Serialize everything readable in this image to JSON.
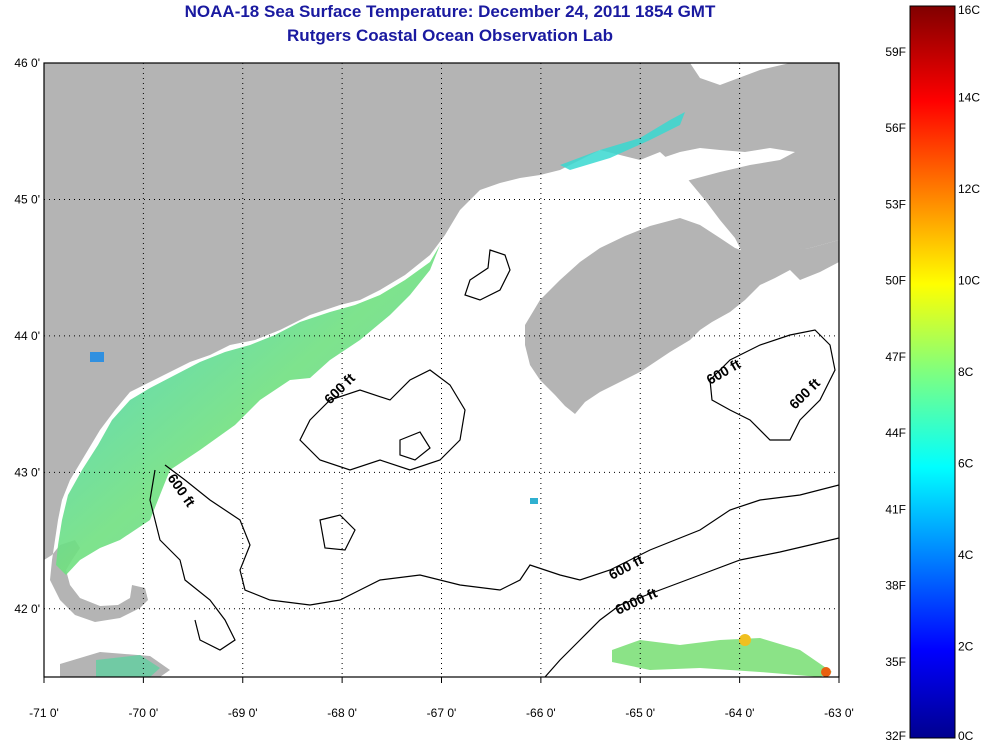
{
  "title": {
    "line1": "NOAA-18 Sea Surface Temperature:  December 24, 2011 1854 GMT",
    "line2": "Rutgers Coastal Ocean Observation Lab"
  },
  "map": {
    "lon_ticks": [
      "-71 0'",
      "-70 0'",
      "-69 0'",
      "-68 0'",
      "-67 0'",
      "-66 0'",
      "-65 0'",
      "-64 0'",
      "-63 0'"
    ],
    "lat_ticks": [
      "46 0'",
      "45 0'",
      "44 0'",
      "43 0'",
      "42 0'"
    ],
    "lon_range": [
      -71,
      -63
    ],
    "lat_range": [
      41.5,
      46
    ],
    "contour_labels": [
      "600 ft",
      "600 ft",
      "600 ft",
      "600 ft",
      "600 ft",
      "6000 ft"
    ],
    "colors": {
      "land": "#b4b4b4",
      "ocean": "#ffffff",
      "contour": "#000000",
      "grid": "#000000"
    }
  },
  "colorbar": {
    "celsius_labels": [
      "16C",
      "14C",
      "12C",
      "10C",
      "8C",
      "6C",
      "4C",
      "2C",
      "0C"
    ],
    "fahrenheit_labels": [
      "59F",
      "56F",
      "53F",
      "50F",
      "47F",
      "44F",
      "41F",
      "38F",
      "35F",
      "32F"
    ],
    "range_c": [
      0,
      16
    ],
    "colormap": "jet"
  }
}
